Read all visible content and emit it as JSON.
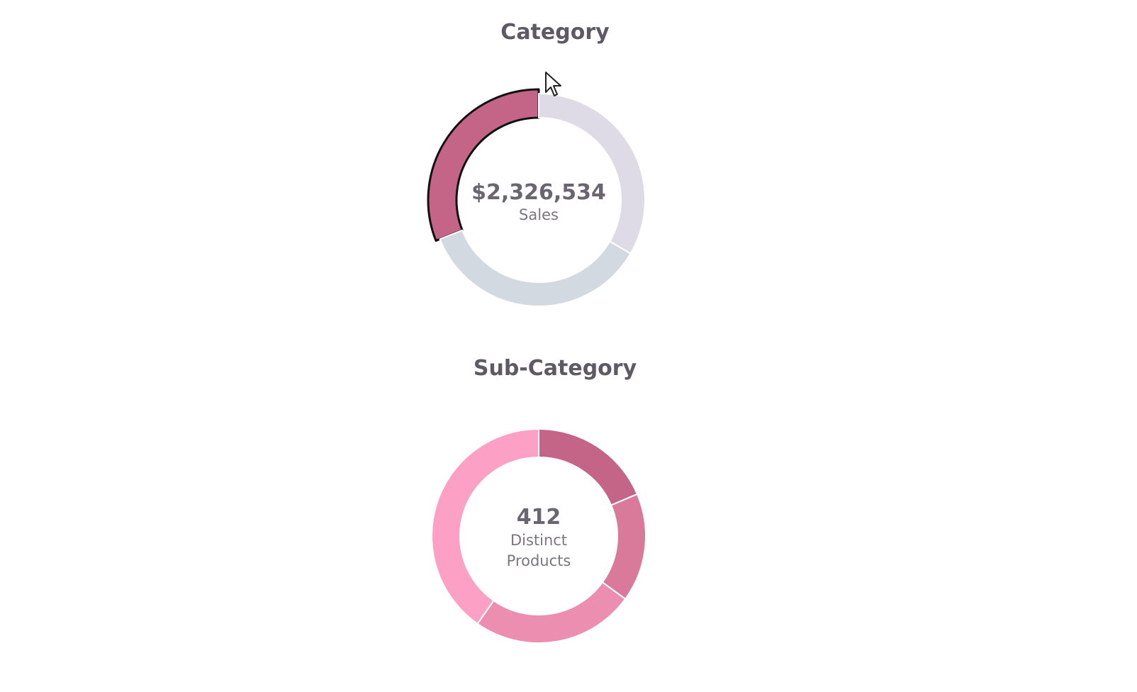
{
  "chart_data": [
    {
      "type": "pie",
      "title": "Category",
      "center_value": "$2,326,534",
      "center_label": "Sales",
      "slices": [
        {
          "value": 0.31,
          "color": "#c46587",
          "highlighted": true
        },
        {
          "value": 0.356,
          "color": "#d2d9e1",
          "highlighted": false
        },
        {
          "value": 0.334,
          "color": "#dedbe6",
          "highlighted": false
        }
      ]
    },
    {
      "type": "pie",
      "title": "Sub-Category",
      "center_value": "412",
      "center_label_lines": [
        "Distinct",
        "Products"
      ],
      "slices": [
        {
          "value": 0.186,
          "color": "#c46587"
        },
        {
          "value": 0.164,
          "color": "#d97a9b"
        },
        {
          "value": 0.247,
          "color": "#eb8eb0"
        },
        {
          "value": 0.403,
          "color": "#fca1c5"
        }
      ]
    }
  ]
}
